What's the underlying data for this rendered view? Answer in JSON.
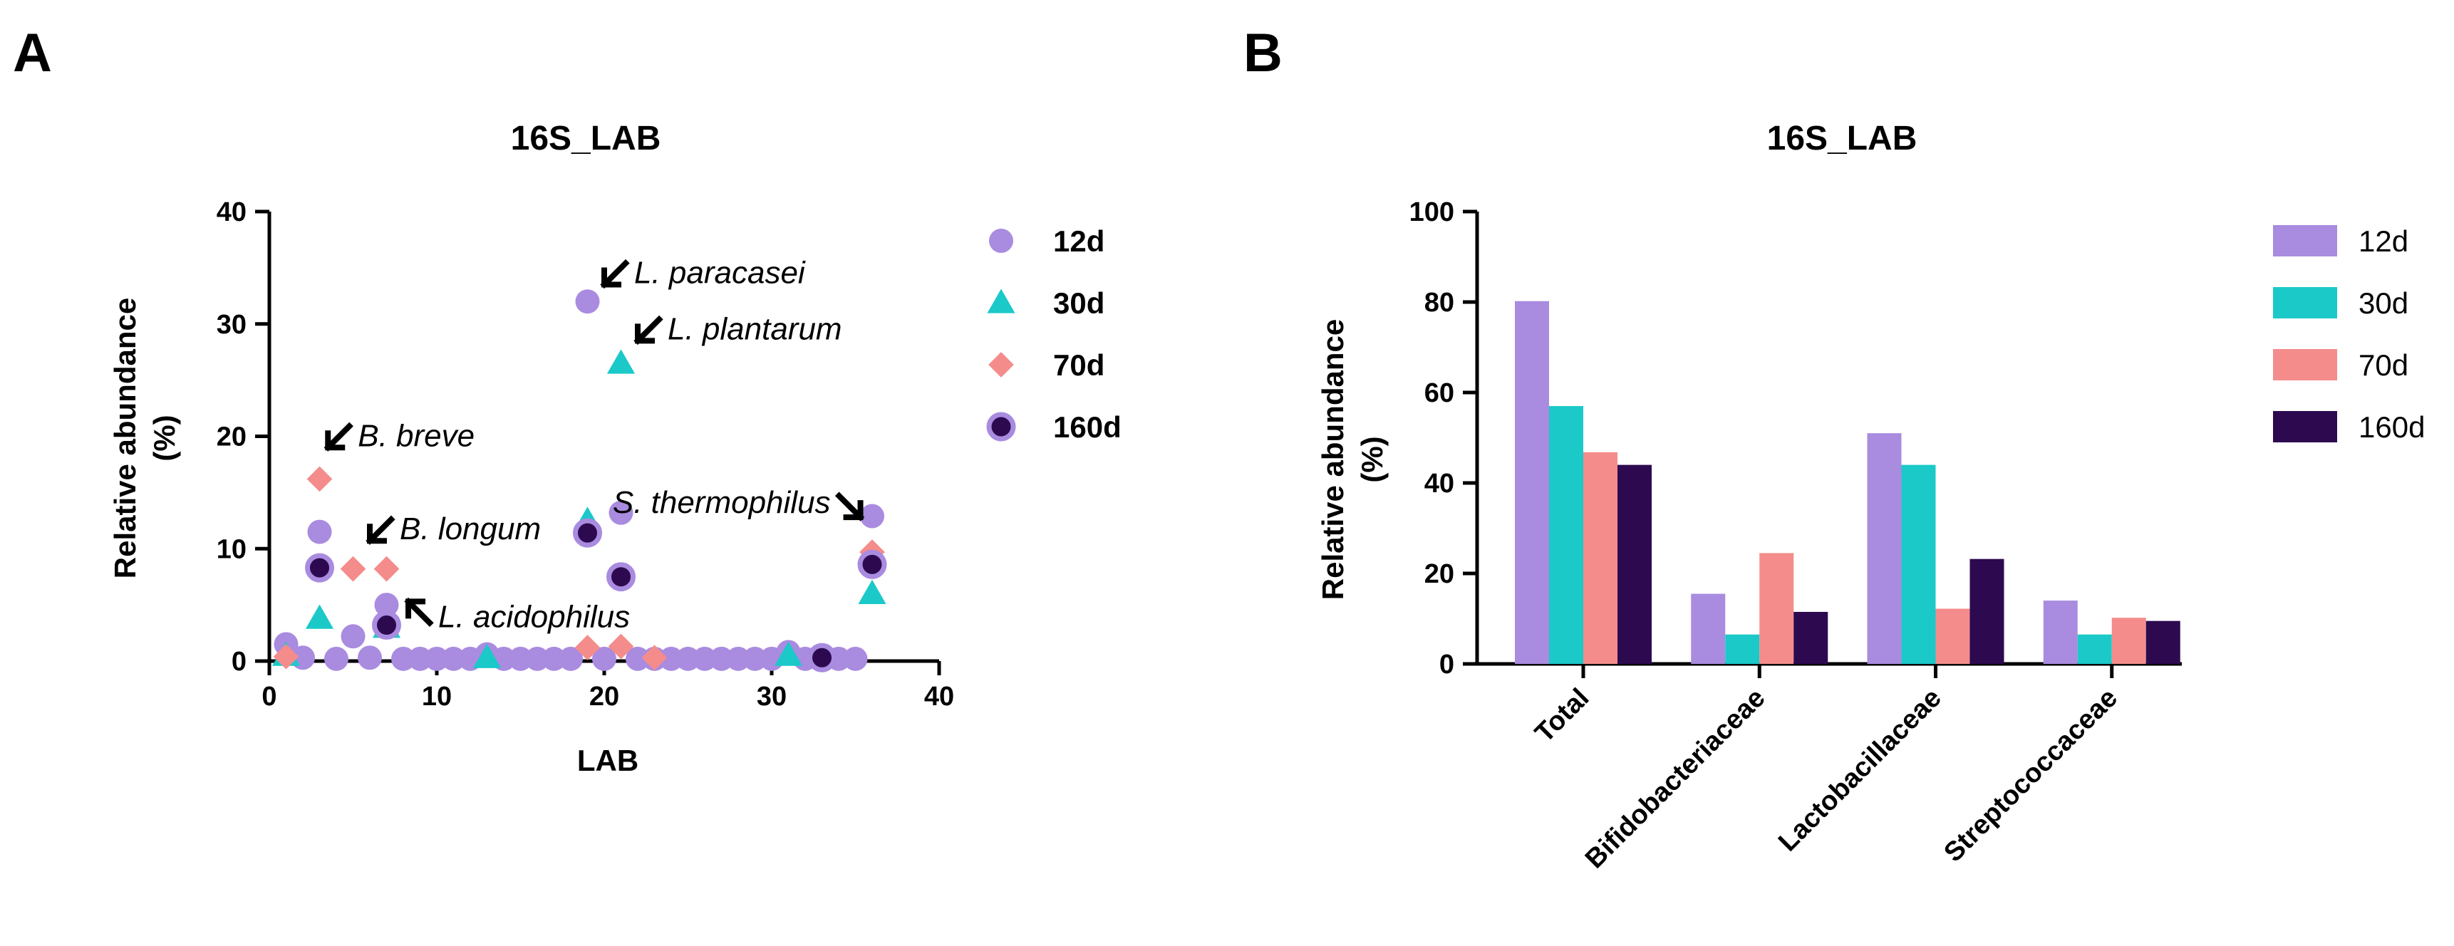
{
  "panels": {
    "a_letter": "A",
    "b_letter": "B"
  },
  "colors": {
    "12d": "#a98be0",
    "30d": "#1bc9c9",
    "70d": "#f48c8c",
    "160d": "#2d0a4f"
  },
  "chart_data": [
    {
      "type": "scatter",
      "title": "16S_LAB",
      "xlabel": "LAB",
      "ylabel_line1": "Relative abundance",
      "ylabel_line2": "(%)",
      "xlim": [
        0,
        40
      ],
      "ylim": [
        0,
        40
      ],
      "xticks": [
        "0",
        "10",
        "20",
        "30",
        "40"
      ],
      "yticks": [
        "0",
        "10",
        "20",
        "30",
        "40"
      ],
      "legend": [
        "12d",
        "30d",
        "70d",
        "160d"
      ],
      "series": [
        {
          "name": "12d",
          "marker": "circle",
          "points": [
            [
              1,
              1.5
            ],
            [
              2,
              0.3
            ],
            [
              3,
              11.5
            ],
            [
              4,
              0.2
            ],
            [
              5,
              2.2
            ],
            [
              6,
              0.3
            ],
            [
              7,
              5.0
            ],
            [
              8,
              0.2
            ],
            [
              9,
              0.2
            ],
            [
              10,
              0.2
            ],
            [
              11,
              0.2
            ],
            [
              12,
              0.2
            ],
            [
              13,
              0.6
            ],
            [
              14,
              0.2
            ],
            [
              15,
              0.2
            ],
            [
              16,
              0.2
            ],
            [
              17,
              0.2
            ],
            [
              18,
              0.2
            ],
            [
              19,
              32.0
            ],
            [
              20,
              0.2
            ],
            [
              21,
              13.2
            ],
            [
              22,
              0.2
            ],
            [
              23,
              0.2
            ],
            [
              24,
              0.2
            ],
            [
              25,
              0.2
            ],
            [
              26,
              0.2
            ],
            [
              27,
              0.2
            ],
            [
              28,
              0.2
            ],
            [
              29,
              0.2
            ],
            [
              30,
              0.2
            ],
            [
              31,
              0.8
            ],
            [
              32,
              0.2
            ],
            [
              33,
              0.3
            ],
            [
              34,
              0.2
            ],
            [
              35,
              0.2
            ],
            [
              36,
              12.9
            ]
          ]
        },
        {
          "name": "30d",
          "marker": "triangle",
          "points": [
            [
              1,
              0.5
            ],
            [
              3,
              3.8
            ],
            [
              7,
              3.0
            ],
            [
              19,
              12.5
            ],
            [
              21,
              26.5
            ],
            [
              36,
              6.0
            ],
            [
              13,
              0.3
            ],
            [
              31,
              0.5
            ]
          ]
        },
        {
          "name": "70d",
          "marker": "diamond",
          "points": [
            [
              1,
              0.4
            ],
            [
              3,
              16.2
            ],
            [
              5,
              8.2
            ],
            [
              7,
              8.2
            ],
            [
              19,
              1.2
            ],
            [
              21,
              1.3
            ],
            [
              23,
              0.3
            ],
            [
              33,
              0.4
            ],
            [
              36,
              9.7
            ]
          ]
        },
        {
          "name": "160d",
          "marker": "circle-outlined",
          "points": [
            [
              3,
              8.3
            ],
            [
              7,
              3.2
            ],
            [
              19,
              11.4
            ],
            [
              21,
              7.5
            ],
            [
              33,
              0.3
            ],
            [
              36,
              8.6
            ]
          ]
        }
      ],
      "annotations": [
        {
          "text": "L. paracasei",
          "x": 20.0,
          "y": 33.5,
          "arrow_dir": "sw",
          "text_side": "right"
        },
        {
          "text": "L. plantarum",
          "x": 22.0,
          "y": 28.5,
          "arrow_dir": "sw",
          "text_side": "right"
        },
        {
          "text": "B. breve",
          "x": 3.5,
          "y": 19.0,
          "arrow_dir": "sw",
          "text_side": "right"
        },
        {
          "text": "B. longum",
          "x": 6.0,
          "y": 10.7,
          "arrow_dir": "sw",
          "text_side": "right"
        },
        {
          "text": "L. acidophilus",
          "x": 8.3,
          "y": 5.3,
          "arrow_dir": "nw",
          "text_side": "right"
        },
        {
          "text": "S. thermophilus",
          "x": 35.3,
          "y": 12.8,
          "arrow_dir": "se",
          "text_side": "left"
        }
      ]
    },
    {
      "type": "bar",
      "title": "16S_LAB",
      "ylabel_line1": "Relative abundance",
      "ylabel_line2": "(%)",
      "ylim": [
        0,
        100
      ],
      "yticks": [
        "0",
        "20",
        "40",
        "60",
        "80",
        "100"
      ],
      "categories": [
        "Total",
        "Bifidobacteriaceae",
        "Lactobacillaceae",
        "Streptococcaceae"
      ],
      "series": [
        {
          "name": "12d",
          "values": [
            80.2,
            15.5,
            51.0,
            14.0
          ]
        },
        {
          "name": "30d",
          "values": [
            57.0,
            6.5,
            44.0,
            6.5
          ]
        },
        {
          "name": "70d",
          "values": [
            46.8,
            24.5,
            12.2,
            10.2
          ]
        },
        {
          "name": "160d",
          "values": [
            44.0,
            11.5,
            23.2,
            9.5
          ]
        }
      ],
      "legend": [
        "12d",
        "30d",
        "70d",
        "160d"
      ]
    }
  ]
}
